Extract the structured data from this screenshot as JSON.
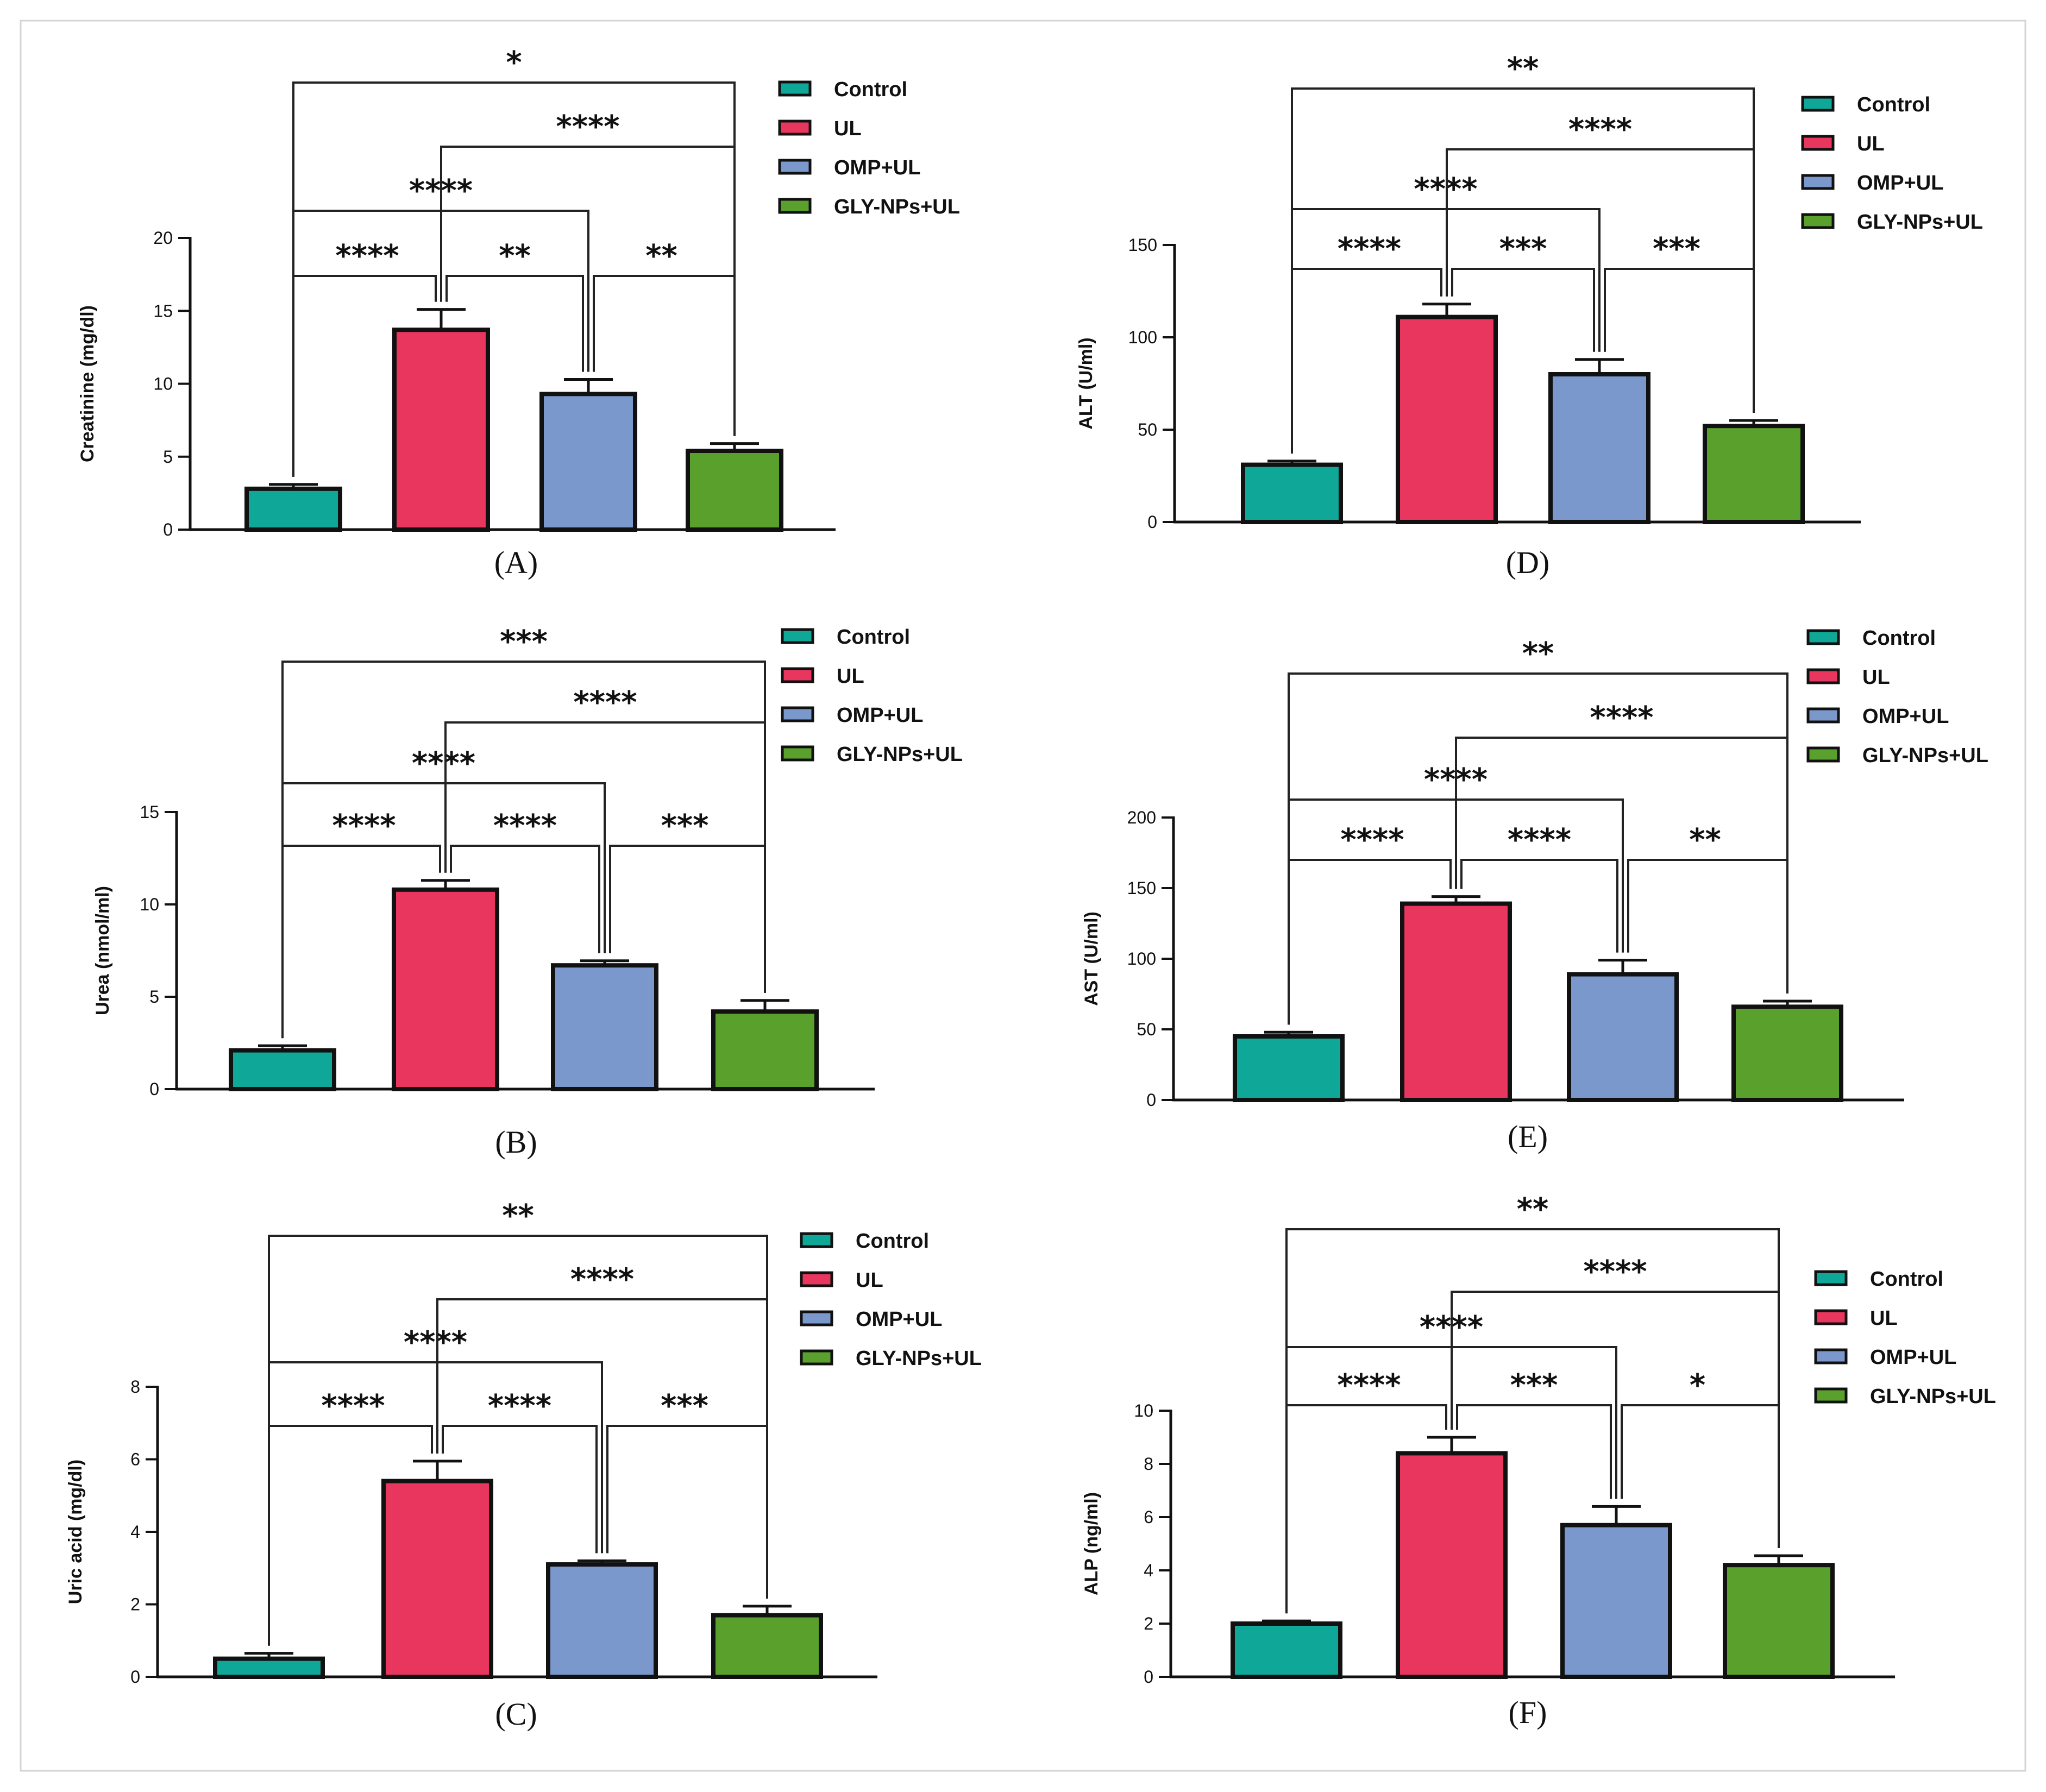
{
  "legend_colors": {
    "Control": "#0fa898",
    "UL": "#e8365f",
    "OMP+UL": "#7a98cc",
    "GLY-NPs+UL": "#5aa02c"
  },
  "chart_data": [
    {
      "type": "bar",
      "panel": "(A)",
      "ylabel": "Creatinine (mg/dl)",
      "categories": [
        "Control",
        "UL",
        "OMP+UL",
        "GLY-NPs+UL"
      ],
      "values": [
        2.8,
        13.7,
        9.3,
        5.4
      ],
      "errors": [
        0.3,
        1.4,
        1.0,
        0.5
      ],
      "ylim": [
        0,
        20
      ],
      "yticks": [
        0,
        5,
        10,
        15,
        20
      ],
      "legend": [
        "Control",
        "UL",
        "OMP+UL",
        "GLY-NPs+UL"
      ],
      "legend_position": "top-right",
      "significance": [
        {
          "pair": [
            0,
            1
          ],
          "label": "****",
          "level": 1
        },
        {
          "pair": [
            1,
            2
          ],
          "label": "**",
          "level": 1
        },
        {
          "pair": [
            2,
            3
          ],
          "label": "**",
          "level": 1
        },
        {
          "pair": [
            0,
            2
          ],
          "label": "****",
          "level": 2
        },
        {
          "pair": [
            1,
            3
          ],
          "label": "****",
          "level": 3
        },
        {
          "pair": [
            0,
            3
          ],
          "label": "*",
          "level": 4
        }
      ]
    },
    {
      "type": "bar",
      "panel": "(B)",
      "ylabel": "Urea (nmol/ml)",
      "categories": [
        "Control",
        "UL",
        "OMP+UL",
        "GLY-NPs+UL"
      ],
      "values": [
        2.1,
        10.8,
        6.7,
        4.2
      ],
      "errors": [
        0.25,
        0.5,
        0.25,
        0.6
      ],
      "ylim": [
        0,
        15
      ],
      "yticks": [
        0,
        5,
        10,
        15
      ],
      "legend": [
        "Control",
        "UL",
        "OMP+UL",
        "GLY-NPs+UL"
      ],
      "legend_position": "top-right",
      "significance": [
        {
          "pair": [
            0,
            1
          ],
          "label": "****",
          "level": 1
        },
        {
          "pair": [
            1,
            2
          ],
          "label": "****",
          "level": 1
        },
        {
          "pair": [
            2,
            3
          ],
          "label": "***",
          "level": 1
        },
        {
          "pair": [
            0,
            2
          ],
          "label": "****",
          "level": 2
        },
        {
          "pair": [
            1,
            3
          ],
          "label": "****",
          "level": 3
        },
        {
          "pair": [
            0,
            3
          ],
          "label": "***",
          "level": 4
        }
      ]
    },
    {
      "type": "bar",
      "panel": "(C)",
      "ylabel": "Uric acid (mg/dl)",
      "categories": [
        "Control",
        "UL",
        "OMP+UL",
        "GLY-NPs+UL"
      ],
      "values": [
        0.5,
        5.4,
        3.1,
        1.7
      ],
      "errors": [
        0.15,
        0.55,
        0.1,
        0.25
      ],
      "ylim": [
        0,
        8
      ],
      "yticks": [
        0,
        2,
        4,
        6,
        8
      ],
      "legend": [
        "Control",
        "UL",
        "OMP+UL",
        "GLY-NPs+UL"
      ],
      "legend_position": "top-right",
      "significance": [
        {
          "pair": [
            0,
            1
          ],
          "label": "****",
          "level": 1
        },
        {
          "pair": [
            1,
            2
          ],
          "label": "****",
          "level": 1
        },
        {
          "pair": [
            2,
            3
          ],
          "label": "***",
          "level": 1
        },
        {
          "pair": [
            0,
            2
          ],
          "label": "****",
          "level": 2
        },
        {
          "pair": [
            1,
            3
          ],
          "label": "****",
          "level": 3
        },
        {
          "pair": [
            0,
            3
          ],
          "label": "**",
          "level": 4
        }
      ]
    },
    {
      "type": "bar",
      "panel": "(D)",
      "ylabel": "ALT (U/ml)",
      "categories": [
        "Control",
        "UL",
        "OMP+UL",
        "GLY-NPs+UL"
      ],
      "values": [
        31,
        111,
        80,
        52
      ],
      "errors": [
        2,
        7,
        8,
        3
      ],
      "ylim": [
        0,
        150
      ],
      "yticks": [
        0,
        50,
        100,
        150
      ],
      "legend": [
        "Control",
        "UL",
        "OMP+UL",
        "GLY-NPs+UL"
      ],
      "legend_position": "top-right",
      "significance": [
        {
          "pair": [
            0,
            1
          ],
          "label": "****",
          "level": 1
        },
        {
          "pair": [
            1,
            2
          ],
          "label": "***",
          "level": 1
        },
        {
          "pair": [
            2,
            3
          ],
          "label": "***",
          "level": 1
        },
        {
          "pair": [
            0,
            2
          ],
          "label": "****",
          "level": 2
        },
        {
          "pair": [
            1,
            3
          ],
          "label": "****",
          "level": 3
        },
        {
          "pair": [
            0,
            3
          ],
          "label": "**",
          "level": 4
        }
      ]
    },
    {
      "type": "bar",
      "panel": "(E)",
      "ylabel": "AST (U/ml)",
      "categories": [
        "Control",
        "UL",
        "OMP+UL",
        "GLY-NPs+UL"
      ],
      "values": [
        45,
        139,
        89,
        66
      ],
      "errors": [
        3,
        5,
        10,
        4
      ],
      "ylim": [
        0,
        200
      ],
      "yticks": [
        0,
        50,
        100,
        150,
        200
      ],
      "legend": [
        "Control",
        "UL",
        "OMP+UL",
        "GLY-NPs+UL"
      ],
      "legend_position": "top-right",
      "significance": [
        {
          "pair": [
            0,
            1
          ],
          "label": "****",
          "level": 1
        },
        {
          "pair": [
            1,
            2
          ],
          "label": "****",
          "level": 1
        },
        {
          "pair": [
            2,
            3
          ],
          "label": "**",
          "level": 1
        },
        {
          "pair": [
            0,
            2
          ],
          "label": "****",
          "level": 2
        },
        {
          "pair": [
            1,
            3
          ],
          "label": "****",
          "level": 3
        },
        {
          "pair": [
            0,
            3
          ],
          "label": "**",
          "level": 4
        }
      ]
    },
    {
      "type": "bar",
      "panel": "(F)",
      "ylabel": "ALP (ng/ml)",
      "categories": [
        "Control",
        "UL",
        "OMP+UL",
        "GLY-NPs+UL"
      ],
      "values": [
        2.0,
        8.4,
        5.7,
        4.2
      ],
      "errors": [
        0.1,
        0.6,
        0.7,
        0.35
      ],
      "ylim": [
        0,
        10
      ],
      "yticks": [
        0,
        2,
        4,
        6,
        8,
        10
      ],
      "legend": [
        "Control",
        "UL",
        "OMP+UL",
        "GLY-NPs+UL"
      ],
      "legend_position": "top-right",
      "significance": [
        {
          "pair": [
            0,
            1
          ],
          "label": "****",
          "level": 1
        },
        {
          "pair": [
            1,
            2
          ],
          "label": "***",
          "level": 1
        },
        {
          "pair": [
            2,
            3
          ],
          "label": "*",
          "level": 1
        },
        {
          "pair": [
            0,
            2
          ],
          "label": "****",
          "level": 2
        },
        {
          "pair": [
            1,
            3
          ],
          "label": "****",
          "level": 3
        },
        {
          "pair": [
            0,
            3
          ],
          "label": "**",
          "level": 4
        }
      ]
    }
  ]
}
